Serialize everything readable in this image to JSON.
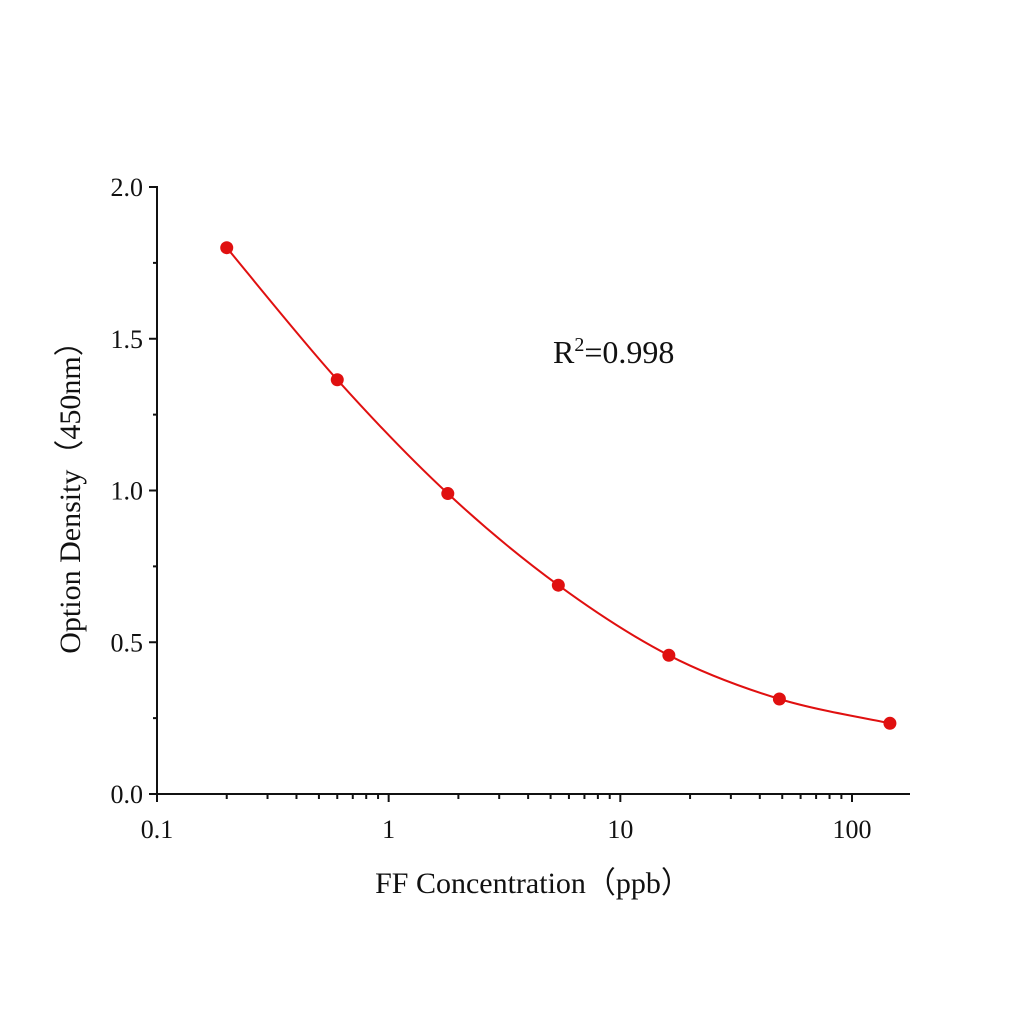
{
  "chart_data": {
    "type": "scatter",
    "xlabel": "FF Concentration（ppb）",
    "ylabel": "Option Density（450nm）",
    "annotation": [
      "R",
      "2",
      "=0.998"
    ],
    "x": [
      0.2,
      0.6,
      1.8,
      5.4,
      16.2,
      48.6,
      145.8
    ],
    "series": [
      {
        "color": "#e01010",
        "values": [
          1.8,
          1.365,
          0.99,
          0.688,
          0.457,
          0.313,
          0.233
        ]
      }
    ],
    "xscale": "log",
    "xlim": [
      0.1,
      178
    ],
    "xticks": [
      0.1,
      1,
      10,
      100
    ],
    "xminorticks": [
      0.2,
      0.3,
      0.4,
      0.5,
      0.6,
      0.7,
      0.8,
      0.9,
      2,
      3,
      4,
      5,
      6,
      7,
      8,
      9,
      20,
      30,
      40,
      50,
      60,
      70,
      80,
      90
    ],
    "ylim": [
      0,
      2
    ],
    "yticks": [
      {
        "value": 0,
        "label": "0.0"
      },
      0.5,
      {
        "value": 1,
        "label": "1.0"
      },
      1.5,
      {
        "value": 2,
        "label": "2.0"
      }
    ],
    "yminorticks": [
      0.25,
      0.75,
      1.25,
      1.75
    ],
    "line": true
  }
}
